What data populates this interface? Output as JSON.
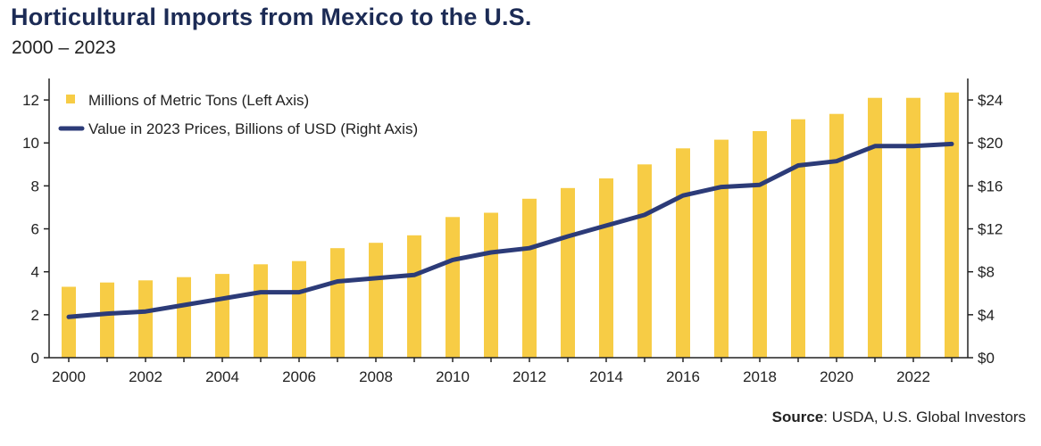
{
  "title": "Horticultural Imports from Mexico to the U.S.",
  "subtitle": "2000 – 2023",
  "source": {
    "label": "Source",
    "text": ": USDA, U.S. Global Investors"
  },
  "colors": {
    "bar": "#f7cc45",
    "line": "#2c3b78",
    "title": "#1c2b55"
  },
  "chart_data": {
    "type": "bar",
    "x": [
      2000,
      2001,
      2002,
      2003,
      2004,
      2005,
      2006,
      2007,
      2008,
      2009,
      2010,
      2011,
      2012,
      2013,
      2014,
      2015,
      2016,
      2017,
      2018,
      2019,
      2020,
      2021,
      2022,
      2023
    ],
    "x_tick_labels": [
      "2000",
      "2002",
      "2004",
      "2006",
      "2008",
      "2010",
      "2012",
      "2014",
      "2016",
      "2018",
      "2020",
      "2022"
    ],
    "series": [
      {
        "name": "Millions of Metric Tons (Left Axis)",
        "type": "bar",
        "axis": "left",
        "values": [
          3.3,
          3.5,
          3.6,
          3.75,
          3.9,
          4.35,
          4.5,
          5.1,
          5.35,
          5.7,
          6.55,
          6.75,
          7.4,
          7.9,
          8.35,
          9.0,
          9.75,
          10.15,
          10.55,
          11.1,
          11.35,
          12.1,
          12.1,
          12.35
        ]
      },
      {
        "name": "Value in 2023 Prices, Billions of USD (Right Axis)",
        "type": "line",
        "axis": "right",
        "values": [
          3.8,
          4.1,
          4.3,
          4.9,
          5.5,
          6.1,
          6.1,
          7.1,
          7.4,
          7.7,
          9.1,
          9.8,
          10.2,
          11.3,
          12.3,
          13.3,
          15.1,
          15.9,
          16.1,
          17.9,
          18.3,
          19.7,
          19.7,
          19.9
        ]
      }
    ],
    "y_left": {
      "ylim": [
        0,
        13
      ],
      "ticks": [
        0,
        2,
        4,
        6,
        8,
        10,
        12
      ],
      "tick_labels": [
        "0",
        "2",
        "4",
        "6",
        "8",
        "10",
        "12"
      ]
    },
    "y_right": {
      "ylim": [
        0,
        26
      ],
      "ticks": [
        0,
        4,
        8,
        12,
        16,
        20,
        24
      ],
      "tick_labels": [
        "$0",
        "$4",
        "$8",
        "$12",
        "$16",
        "$20",
        "$24"
      ]
    },
    "legend_position": "top-left",
    "grid": false
  }
}
